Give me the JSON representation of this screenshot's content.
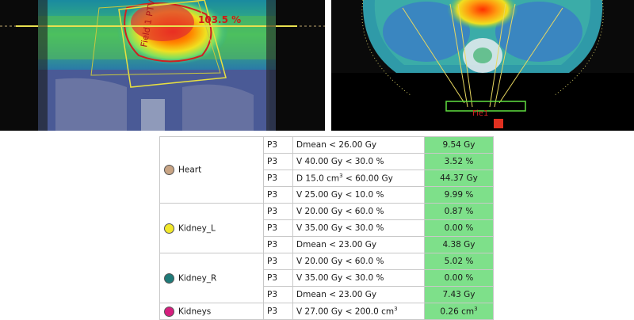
{
  "ct_views": {
    "left": {
      "dose_label": "103.5 %",
      "field_label": "Field 1 PTV"
    },
    "right": {
      "label": "Fie1"
    }
  },
  "table": {
    "rows": [
      {
        "structure": "Heart",
        "color": "#c8a484",
        "phase": "P3",
        "goal": "Dmean < 26.00 Gy",
        "result": "9.54 Gy"
      },
      {
        "phase": "P3",
        "goal": "V 40.00 Gy < 30.0 %",
        "result": "3.52 %"
      },
      {
        "phase": "P3",
        "goal_pre": "D 15.0 cm",
        "goal_post": " < 60.00 Gy",
        "result": "44.37 Gy"
      },
      {
        "phase": "P3",
        "goal": "V 25.00 Gy < 10.0 %",
        "result": "9.99 %"
      },
      {
        "structure": "Kidney_L",
        "color": "#f2e82a",
        "phase": "P3",
        "goal": "V 20.00 Gy < 60.0 %",
        "result": "0.87 %"
      },
      {
        "phase": "P3",
        "goal": "V 35.00 Gy < 30.0 %",
        "result": "0.00 %"
      },
      {
        "phase": "P3",
        "goal": "Dmean < 23.00 Gy",
        "result": "4.38 Gy"
      },
      {
        "structure": "Kidney_R",
        "color": "#1f7a78",
        "phase": "P3",
        "goal": "V 20.00 Gy < 60.0 %",
        "result": "5.02 %"
      },
      {
        "phase": "P3",
        "goal": "V 35.00 Gy < 30.0 %",
        "result": "0.00 %"
      },
      {
        "phase": "P3",
        "goal": "Dmean < 23.00 Gy",
        "result": "7.43 Gy"
      },
      {
        "structure": "Kidneys",
        "color": "#d61f7e",
        "phase": "P3",
        "goal_pre": "V 27.00 Gy < 200.0 cm",
        "goal_post": "",
        "result_pre": "0.26 cm",
        "result_post": ""
      }
    ],
    "superscript": "3"
  }
}
